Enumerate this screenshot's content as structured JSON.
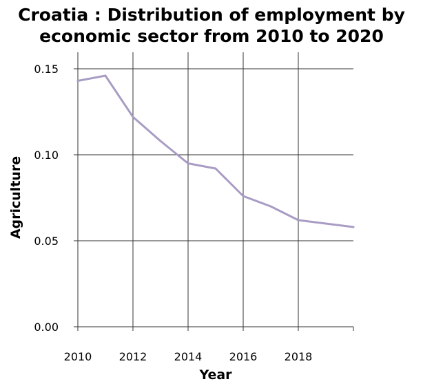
{
  "chart_data": {
    "type": "line",
    "title_lines": [
      "Croatia : Distribution of employment by",
      "economic sector from 2010 to 2020"
    ],
    "xlabel": "Year",
    "ylabel": "Agriculture",
    "xlim": [
      2010,
      2020
    ],
    "ylim": [
      0,
      0.15
    ],
    "x_ticks": [
      2010,
      2012,
      2014,
      2016,
      2018
    ],
    "x_tick_labels": [
      "2010",
      "2012",
      "2014",
      "2016",
      "2018"
    ],
    "y_ticks": [
      0,
      0.05,
      0.1,
      0.15
    ],
    "y_tick_labels": [
      "0.00",
      "0.05",
      "0.10",
      "0.15"
    ],
    "grid": true,
    "series": [
      {
        "color": "#a99cc4",
        "x": [
          2010,
          2011,
          2012,
          2013,
          2014,
          2015,
          2016,
          2017,
          2018,
          2019,
          2020
        ],
        "y": [
          0.143,
          0.146,
          0.122,
          0.108,
          0.095,
          0.092,
          0.076,
          0.07,
          0.062,
          0.06,
          0.058
        ]
      }
    ]
  }
}
